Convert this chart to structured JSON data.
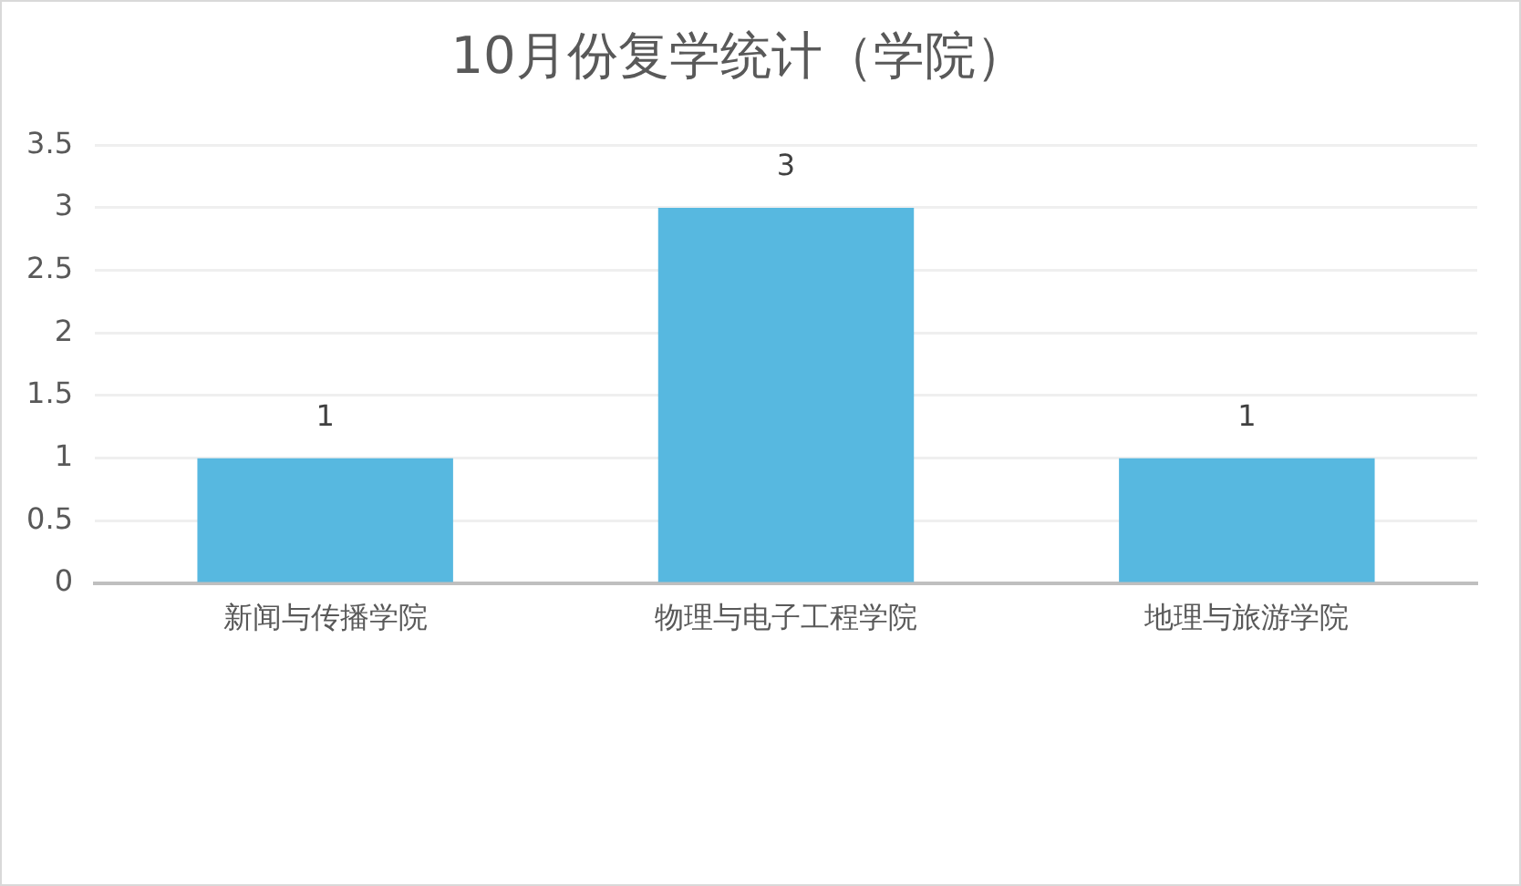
{
  "chart_data": {
    "type": "bar",
    "title": "10月份复学统计（学院）",
    "categories": [
      "新闻与传播学院",
      "物理与电子工程学院",
      "地理与旅游学院"
    ],
    "values": [
      1,
      3,
      1
    ],
    "color": "#57b8e0",
    "ylim": [
      0,
      3.5
    ],
    "yticks": [
      0,
      0.5,
      1,
      1.5,
      2,
      2.5,
      3,
      3.5
    ],
    "grid": "y",
    "data_labels": true
  }
}
